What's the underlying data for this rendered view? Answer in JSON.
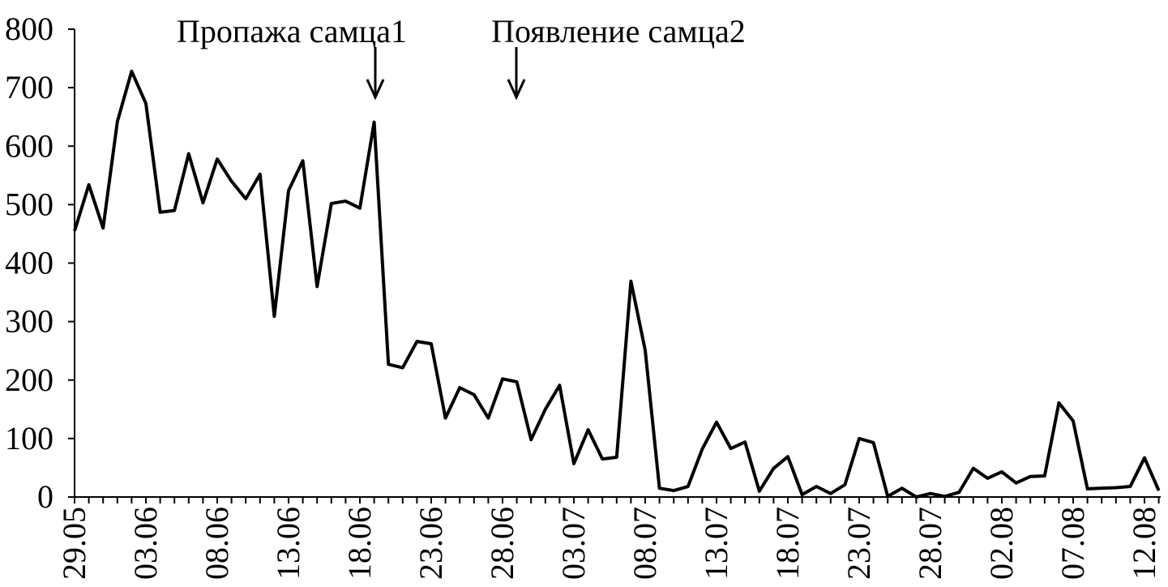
{
  "chart_data": {
    "type": "line",
    "annotations": [
      "Пропажа самца1",
      "Появление самца2"
    ],
    "categories": [
      "29.05",
      null,
      null,
      null,
      null,
      "03.06",
      null,
      null,
      null,
      null,
      "08.06",
      null,
      null,
      null,
      null,
      "13.06",
      null,
      null,
      null,
      null,
      "18.06",
      null,
      null,
      null,
      null,
      "23.06",
      null,
      null,
      null,
      null,
      "28.06",
      null,
      null,
      null,
      null,
      "03.07",
      null,
      null,
      null,
      null,
      "08.07",
      null,
      null,
      null,
      null,
      "13.07",
      null,
      null,
      null,
      null,
      "18.07",
      null,
      null,
      null,
      null,
      "23.07",
      null,
      null,
      null,
      null,
      "28.07",
      null,
      null,
      null,
      null,
      "02.08",
      null,
      null,
      null,
      null,
      "07.08",
      null,
      null,
      null,
      null,
      "12.08",
      null
    ],
    "values": [
      455,
      534,
      460,
      642,
      728,
      673,
      487,
      490,
      587,
      503,
      578,
      540,
      510,
      552,
      309,
      524,
      575,
      360,
      502,
      506,
      494,
      641,
      227,
      221,
      266,
      262,
      135,
      187,
      175,
      135,
      202,
      197,
      98,
      150,
      191,
      57,
      115,
      65,
      68,
      369,
      251,
      15,
      11,
      18,
      82,
      128,
      83,
      94,
      10,
      49,
      69,
      4,
      18,
      6,
      21,
      100,
      93,
      1,
      15,
      0,
      6,
      1,
      8,
      49,
      32,
      43,
      24,
      35,
      36,
      161,
      130,
      14,
      15,
      16,
      18,
      67,
      11
    ],
    "color": "#000000",
    "ylim": [
      0,
      800
    ],
    "yticks": [
      0,
      100,
      200,
      300,
      400,
      500,
      600,
      700,
      800
    ]
  }
}
